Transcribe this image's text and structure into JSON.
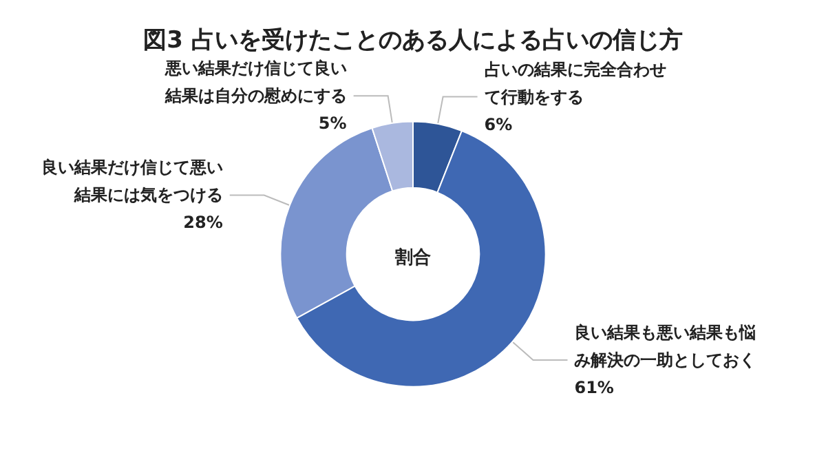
{
  "chart_data": {
    "type": "donut",
    "title": "図3 占いを受けたことのある人による占いの信じ方",
    "categories": [
      "占いの結果に完全合わせて行動をする",
      "良い結果も悪い結果も悩み解決の一助としておく",
      "良い結果だけ信じて悪い結果には気をつける",
      "悪い結果だけ信じて良い結果は自分の慰めにする"
    ],
    "values": [
      6,
      61,
      28,
      5
    ],
    "value_labels": [
      "6%",
      "61%",
      "28%",
      "5%"
    ],
    "colors": [
      "#2e5597",
      "#3f68b3",
      "#7a94cf",
      "#aab8df"
    ],
    "annotations": [
      "割合"
    ],
    "legend": false
  }
}
